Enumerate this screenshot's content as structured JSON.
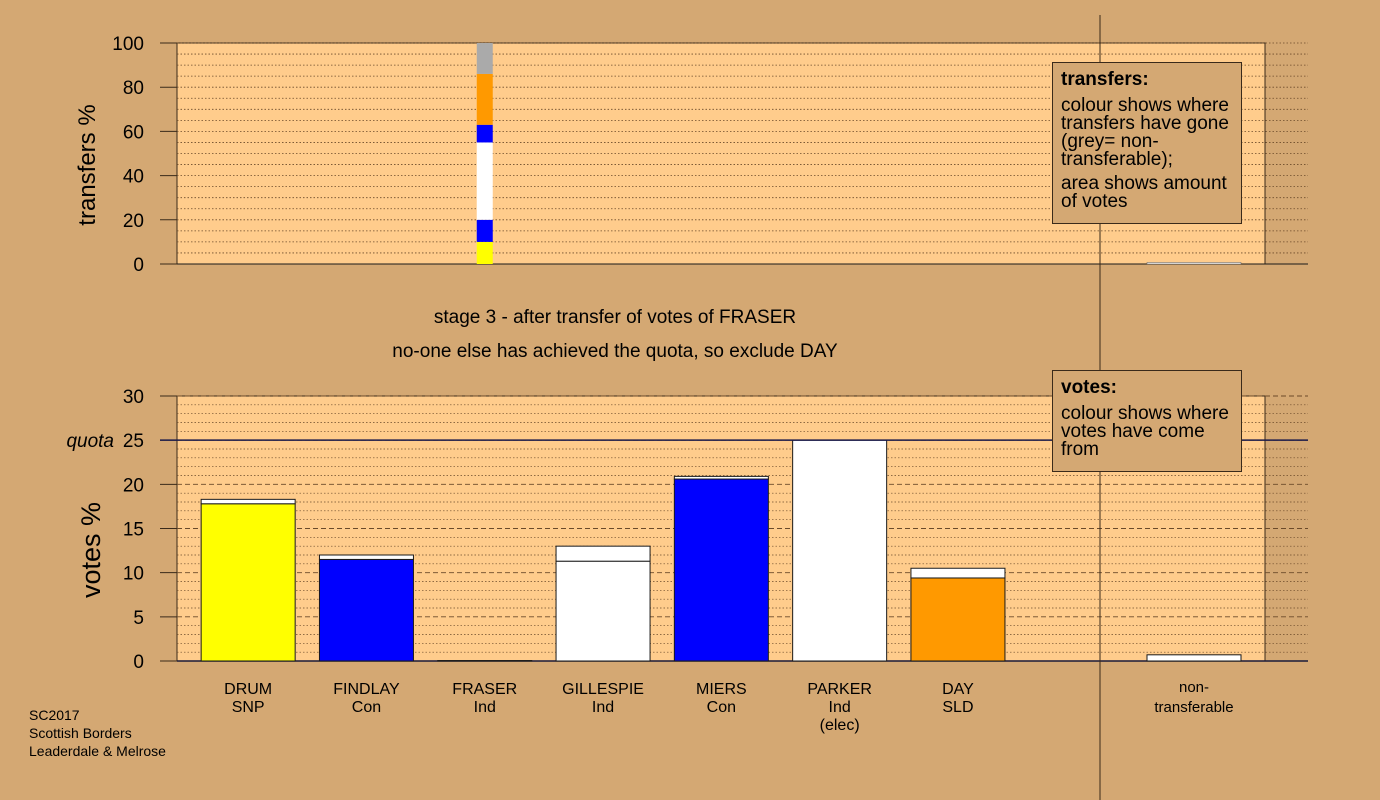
{
  "caption": {
    "stage": "stage 3 - after transfer of votes of FRASER",
    "note": "no-one else has achieved the quota, so exclude DAY"
  },
  "legend_transfers": {
    "title": "transfers:",
    "line1": "colour shows where transfers have gone (grey= non-transferable);",
    "line2": "area shows amount of votes"
  },
  "legend_votes": {
    "title": "votes:",
    "line1": "colour shows where votes have come from"
  },
  "footer": {
    "line1": "SC2017",
    "line2": "Scottish Borders",
    "line3": "Leaderdale & Melrose"
  },
  "colors": {
    "background": "#d4a873",
    "plot_background": "#ffcc8c",
    "snp": "#ffff00",
    "con": "#0000ff",
    "ind": "#ffffff",
    "sld": "#ff9900",
    "nontransferable": "#aaaaaa"
  },
  "chart_data": [
    {
      "type": "bar",
      "ylabel": "transfers %",
      "ylim": [
        0,
        100
      ],
      "yticks": [
        0,
        20,
        40,
        60,
        80,
        100
      ],
      "stacked_transfer_bar": {
        "from": "FRASER",
        "segments": [
          {
            "to": "DRUM",
            "color": "#ffff00",
            "from_pct": 0,
            "to_pct": 10
          },
          {
            "to": "FINDLAY",
            "color": "#0000ff",
            "from_pct": 10,
            "to_pct": 20
          },
          {
            "to": "GILLESPIE",
            "color": "#ffffff",
            "from_pct": 20,
            "to_pct": 55
          },
          {
            "to": "MIERS",
            "color": "#0000ff",
            "from_pct": 55,
            "to_pct": 63
          },
          {
            "to": "DAY",
            "color": "#ff9900",
            "from_pct": 63,
            "to_pct": 86
          },
          {
            "to": "non-transferable",
            "color": "#aaaaaa",
            "from_pct": 86,
            "to_pct": 100
          }
        ]
      }
    },
    {
      "type": "bar",
      "ylabel": "votes %",
      "ylim": [
        0,
        30
      ],
      "yticks": [
        0,
        5,
        10,
        15,
        20,
        25,
        30
      ],
      "quota": 25,
      "quota_label": "quota",
      "categories": [
        {
          "name": "DRUM",
          "party": "SNP",
          "extra": "",
          "color": "#ffff00",
          "base": 17.8,
          "added": 0.5
        },
        {
          "name": "FINDLAY",
          "party": "Con",
          "extra": "",
          "color": "#0000ff",
          "base": 11.5,
          "added": 0.5
        },
        {
          "name": "FRASER",
          "party": "Ind",
          "extra": "",
          "color": "#ffffff",
          "base": 0.05,
          "added": 0
        },
        {
          "name": "GILLESPIE",
          "party": "Ind",
          "extra": "",
          "color": "#ffffff",
          "base": 11.3,
          "added": 1.7
        },
        {
          "name": "MIERS",
          "party": "Con",
          "extra": "",
          "color": "#0000ff",
          "base": 20.6,
          "added": 0.3
        },
        {
          "name": "PARKER",
          "party": "Ind",
          "extra": "(elec)",
          "color": "#ffffff",
          "base": 25.0,
          "added": 0
        },
        {
          "name": "DAY",
          "party": "SLD",
          "extra": "",
          "color": "#ff9900",
          "base": 9.4,
          "added": 1.1
        }
      ],
      "nontransferable": {
        "label1": "non-",
        "label2": "transferable",
        "value": 0.7
      }
    }
  ]
}
